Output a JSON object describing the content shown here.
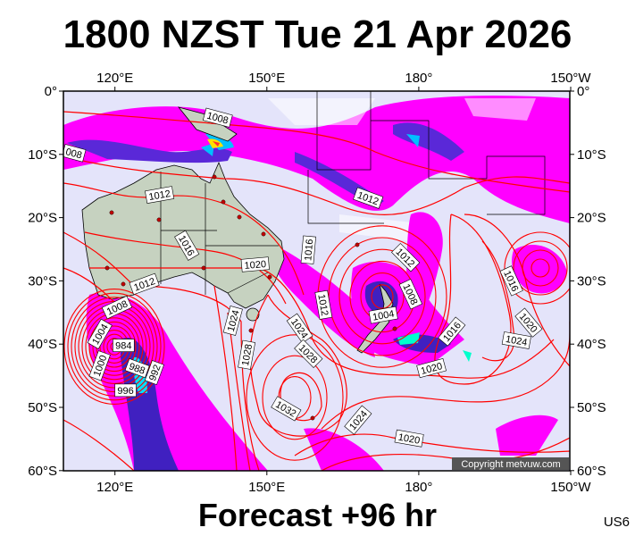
{
  "title": "1800 NZST Tue 21 Apr 2026",
  "footer": "Forecast +96 hr",
  "model": "US6",
  "copyright": "Copyright metvuw.com",
  "colors": {
    "ocean": "#e4e4fa",
    "land": "#c6d2c0",
    "isobar": "#ff0000",
    "rain_light": "#ff00ff",
    "rain_mid": "#3c20e0",
    "rain_heavy": "#00ffff"
  },
  "map": {
    "lon_range": [
      110,
      210
    ],
    "lat_range": [
      0,
      -60
    ],
    "lon_ticks_top": [
      "120°E",
      "150°E",
      "180°",
      "150°W"
    ],
    "lon_ticks_bottom": [
      "120°E",
      "150°E",
      "180°",
      "150°W"
    ],
    "lat_ticks_left": [
      "0°",
      "10°S",
      "20°S",
      "30°S",
      "40°S",
      "50°S",
      "60°S"
    ],
    "lat_ticks_right": [
      "0°",
      "10°S",
      "20°S",
      "30°S",
      "40°S",
      "50°S",
      "60°S"
    ],
    "isobar_labels": [
      {
        "text": "1008",
        "lon": 140.3,
        "lat": -4.2
      },
      {
        "text": "008",
        "lon": 111.9,
        "lat": -9.8
      },
      {
        "text": "1012",
        "lon": 128.8,
        "lat": -16.4
      },
      {
        "text": "1016",
        "lon": 134.2,
        "lat": -24.4
      },
      {
        "text": "1020",
        "lon": 147.7,
        "lat": -27.4
      },
      {
        "text": "1012",
        "lon": 125.8,
        "lat": -30.5
      },
      {
        "text": "1008",
        "lon": 120.4,
        "lat": -34.2
      },
      {
        "text": "1004",
        "lon": 117.0,
        "lat": -38.4
      },
      {
        "text": "984",
        "lon": 121.7,
        "lat": -40.2
      },
      {
        "text": "1000",
        "lon": 117.0,
        "lat": -43.4
      },
      {
        "text": "988",
        "lon": 124.4,
        "lat": -43.8
      },
      {
        "text": "992",
        "lon": 127.8,
        "lat": -44.5
      },
      {
        "text": "996",
        "lon": 122.1,
        "lat": -47.3
      },
      {
        "text": "1024",
        "lon": 143.3,
        "lat": -36.3
      },
      {
        "text": "1028",
        "lon": 146.0,
        "lat": -41.7
      },
      {
        "text": "1016",
        "lon": 158.2,
        "lat": -25.1
      },
      {
        "text": "1012",
        "lon": 161.2,
        "lat": -33.8
      },
      {
        "text": "1024",
        "lon": 156.5,
        "lat": -37.5
      },
      {
        "text": "1028",
        "lon": 158.2,
        "lat": -41.5
      },
      {
        "text": "1032",
        "lon": 153.8,
        "lat": -50.2
      },
      {
        "text": "1024",
        "lon": 168.0,
        "lat": -52.0
      },
      {
        "text": "1020",
        "lon": 178.1,
        "lat": -54.9
      },
      {
        "text": "1012",
        "lon": 170.0,
        "lat": -16.9
      },
      {
        "text": "1012",
        "lon": 177.4,
        "lat": -26.3
      },
      {
        "text": "1008",
        "lon": 178.4,
        "lat": -32.1
      },
      {
        "text": "1004",
        "lon": 173.0,
        "lat": -35.4
      },
      {
        "text": "1016",
        "lon": 186.5,
        "lat": -38.0
      },
      {
        "text": "1020",
        "lon": 182.5,
        "lat": -43.8
      },
      {
        "text": "1016",
        "lon": 198.3,
        "lat": -30.0
      },
      {
        "text": "1020",
        "lon": 201.7,
        "lat": -36.6
      },
      {
        "text": "1024",
        "lon": 199.3,
        "lat": -39.4
      }
    ]
  }
}
